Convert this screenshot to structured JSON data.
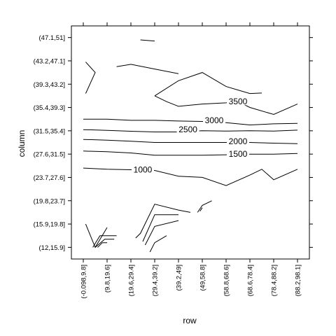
{
  "chart_data": {
    "type": "contour",
    "xlabel": "row",
    "ylabel": "column",
    "x_categories": [
      "(-0.098,9.8]",
      "(9.8,19.6]",
      "(19.6,29.4]",
      "(29.4,39.2]",
      "(39.2,49]",
      "(49,58.8]",
      "(58.8,68.6]",
      "(68.6,78.4]",
      "(78.4,88.2]",
      "(88.2,98.1]"
    ],
    "y_categories": [
      "(12,15.9]",
      "(15.9,19.8]",
      "(19.8,23.7]",
      "(23.7,27.6]",
      "(27.6,31.5]",
      "(31.5,35.4]",
      "(35.4,39.3]",
      "(39.3,43.2]",
      "(43.2,47.1]",
      "(47.1,51]"
    ],
    "xlim": [
      0.5,
      10.5
    ],
    "ylim": [
      0.5,
      10.5
    ],
    "contours": [
      {
        "level": "1000",
        "label_at": [
          3.5,
          4.33
        ],
        "points": [
          [
            1,
            4.4
          ],
          [
            2,
            4.35
          ],
          [
            3,
            4.33
          ],
          [
            4,
            4.3
          ],
          [
            5,
            4.05
          ],
          [
            6,
            4.0
          ],
          [
            7,
            3.65
          ],
          [
            8,
            4.1
          ],
          [
            8.5,
            4.35
          ],
          [
            9,
            3.9
          ],
          [
            10,
            4.35
          ]
        ]
      },
      {
        "level": "1500",
        "label_at": [
          7.5,
          5.0
        ],
        "points": [
          [
            1,
            5.13
          ],
          [
            2,
            5.1
          ],
          [
            3,
            5.05
          ],
          [
            4,
            4.95
          ],
          [
            5,
            4.95
          ],
          [
            6,
            4.95
          ],
          [
            7,
            4.97
          ],
          [
            8,
            5.0
          ],
          [
            9,
            5.0
          ],
          [
            10,
            5.03
          ]
        ]
      },
      {
        "level": "2000",
        "label_at": [
          7.5,
          5.55
        ],
        "points": [
          [
            1,
            5.63
          ],
          [
            2,
            5.6
          ],
          [
            3,
            5.55
          ],
          [
            4,
            5.5
          ],
          [
            5,
            5.5
          ],
          [
            6,
            5.5
          ],
          [
            7,
            5.5
          ],
          [
            8,
            5.5
          ],
          [
            9,
            5.47
          ],
          [
            10,
            5.45
          ]
        ]
      },
      {
        "level": "2500",
        "label_at": [
          5.4,
          6.05
        ],
        "points": [
          [
            1,
            6.05
          ],
          [
            2,
            6.02
          ],
          [
            3,
            5.98
          ],
          [
            4,
            5.95
          ],
          [
            5,
            5.95
          ],
          [
            6,
            6.0
          ],
          [
            7,
            5.99
          ],
          [
            8,
            6.0
          ],
          [
            9,
            5.99
          ],
          [
            10,
            6.03
          ]
        ]
      },
      {
        "level": "3000",
        "label_at": [
          6.5,
          6.45
        ],
        "points": [
          [
            1,
            6.5
          ],
          [
            2,
            6.5
          ],
          [
            3,
            6.45
          ],
          [
            4,
            6.45
          ],
          [
            5,
            6.42
          ],
          [
            6,
            6.4
          ],
          [
            7,
            6.35
          ],
          [
            8,
            6.25
          ],
          [
            9,
            6.3
          ],
          [
            10,
            6.32
          ]
        ]
      },
      {
        "level": "3500",
        "label_at": [
          7.5,
          7.25
        ],
        "points": [
          [
            4,
            7.5
          ],
          [
            4.5,
            7.25
          ],
          [
            5,
            7.05
          ],
          [
            6,
            7.15
          ],
          [
            7,
            7.2
          ],
          [
            7.5,
            7.25
          ],
          [
            8,
            7.0
          ],
          [
            9,
            6.7
          ],
          [
            10,
            7.15
          ]
        ]
      },
      {
        "level": "",
        "points": [
          [
            4,
            7.5
          ],
          [
            5,
            8.15
          ],
          [
            6,
            8.5
          ],
          [
            7,
            7.9
          ],
          [
            8,
            7.6
          ],
          [
            8.5,
            7.62
          ]
        ]
      },
      {
        "level": "",
        "points": [
          [
            2.4,
            8.75
          ],
          [
            3,
            8.85
          ],
          [
            4,
            8.65
          ],
          [
            5,
            8.45
          ]
        ]
      },
      {
        "level": "",
        "points": [
          [
            3.4,
            9.9
          ],
          [
            4,
            9.85
          ]
        ]
      },
      {
        "level": "",
        "points": [
          [
            1.1,
            8.95
          ],
          [
            1.5,
            8.5
          ],
          [
            1.1,
            7.6
          ]
        ]
      },
      {
        "level": "",
        "points": [
          [
            1.1,
            2.0
          ],
          [
            1.5,
            1.0
          ],
          [
            2.0,
            1.85
          ]
        ]
      },
      {
        "level": "",
        "points": [
          [
            1.4,
            1.0
          ],
          [
            1.7,
            1.5
          ],
          [
            2.4,
            1.5
          ]
        ]
      },
      {
        "level": "",
        "points": [
          [
            1.5,
            1.0
          ],
          [
            1.9,
            1.35
          ],
          [
            2.3,
            1.35
          ]
        ]
      },
      {
        "level": "",
        "points": [
          [
            1.6,
            1.0
          ],
          [
            1.8,
            1.2
          ],
          [
            2.0,
            1.2
          ]
        ]
      },
      {
        "level": "",
        "points": [
          [
            3.2,
            1.4
          ],
          [
            3.4,
            1.6
          ],
          [
            4.0,
            2.85
          ],
          [
            5.0,
            2.6
          ],
          [
            5.5,
            2.5
          ]
        ]
      },
      {
        "level": "",
        "points": [
          [
            3.5,
            1.25
          ],
          [
            4.0,
            2.4
          ],
          [
            5.0,
            2.4
          ]
        ]
      },
      {
        "level": "",
        "points": [
          [
            3.6,
            1.1
          ],
          [
            4.0,
            1.9
          ],
          [
            5.0,
            2.15
          ]
        ]
      },
      {
        "level": "",
        "points": [
          [
            3.8,
            0.8
          ],
          [
            4.0,
            1.2
          ],
          [
            4.5,
            1.5
          ]
        ]
      },
      {
        "level": "",
        "points": [
          [
            5.8,
            2.5
          ],
          [
            6.0,
            2.8
          ],
          [
            6.4,
            3.0
          ]
        ]
      },
      {
        "level": "",
        "points": [
          [
            5.9,
            2.55
          ],
          [
            6.0,
            2.7
          ]
        ]
      }
    ]
  }
}
